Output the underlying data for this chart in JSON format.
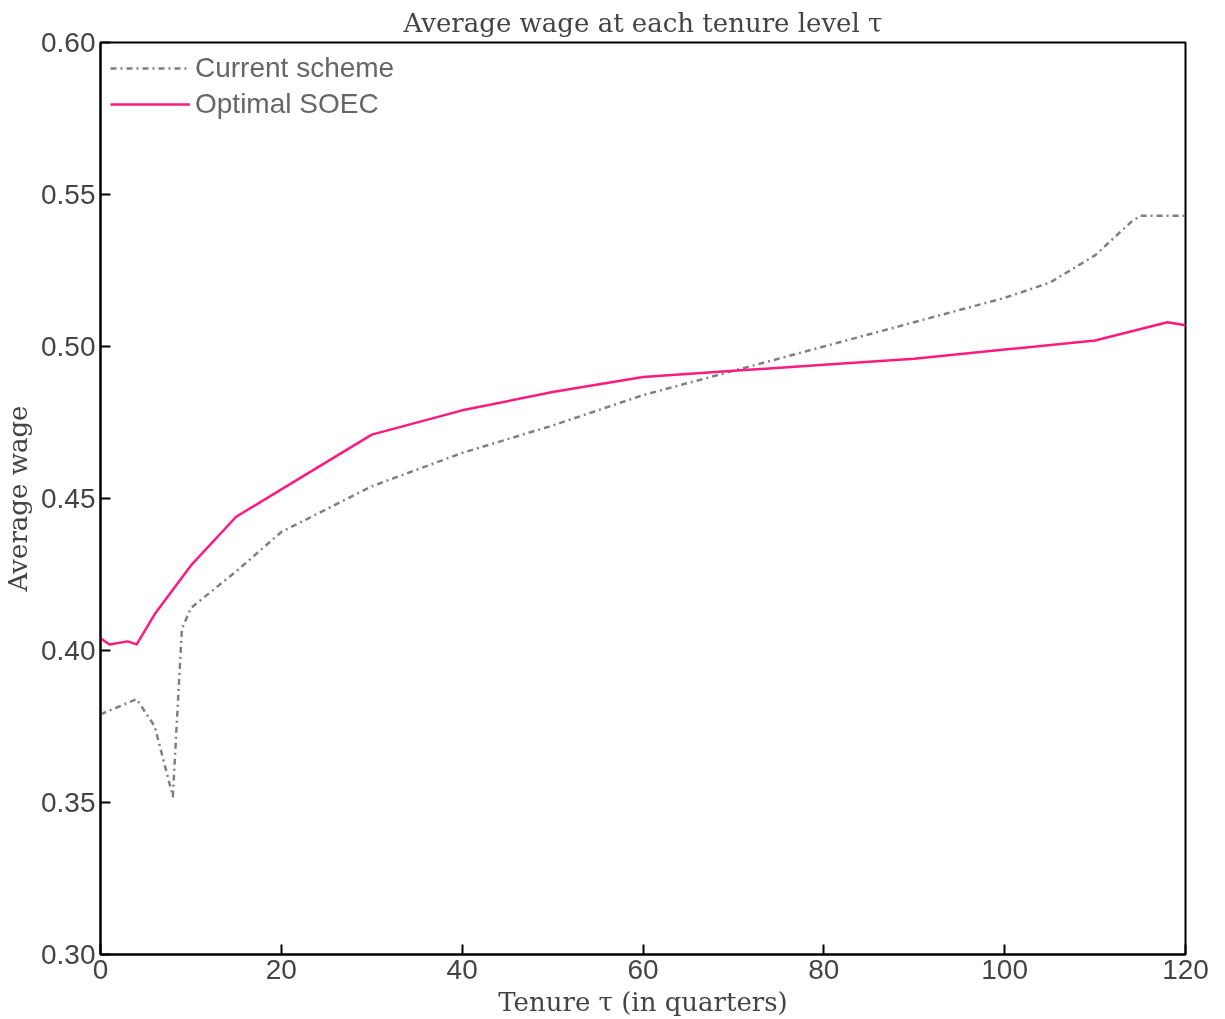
{
  "chart_data": {
    "type": "line",
    "title": "Average wage at each tenure level τ",
    "xlabel": "Tenure τ (in quarters)",
    "ylabel": "Average wage",
    "xlim": [
      0,
      120
    ],
    "xticks": [
      0,
      20,
      40,
      60,
      80,
      100,
      120
    ],
    "ylim": [
      0.3,
      0.6
    ],
    "yticks": [
      {
        "value": 0.3,
        "label": "0.30"
      },
      {
        "value": 0.35,
        "label": "0.35"
      },
      {
        "value": 0.4,
        "label": "0.40"
      },
      {
        "value": 0.45,
        "label": "0.45"
      },
      {
        "value": 0.5,
        "label": "0.50"
      },
      {
        "value": 0.55,
        "label": "0.55"
      },
      {
        "value": 0.6,
        "label": "0.60"
      }
    ],
    "grid": false,
    "legend": "top left",
    "marker": "none",
    "series": [
      {
        "name": "Current scheme",
        "color": "#808080",
        "line_style": "dashdot",
        "x": [
          0,
          4,
          6,
          8,
          9,
          10,
          15,
          20,
          30,
          40,
          50,
          60,
          70,
          80,
          90,
          100,
          105,
          110,
          114,
          115,
          120
        ],
        "values": [
          0.379,
          0.384,
          0.375,
          0.352,
          0.407,
          0.414,
          0.426,
          0.439,
          0.454,
          0.465,
          0.474,
          0.484,
          0.492,
          0.5,
          0.508,
          0.516,
          0.521,
          0.53,
          0.541,
          0.543,
          0.543
        ]
      },
      {
        "name": "Optimal SOEC",
        "color": "#ff1a80",
        "line_style": "solid",
        "x": [
          0,
          1,
          3,
          4,
          6,
          8,
          10,
          15,
          20,
          30,
          40,
          50,
          60,
          70,
          80,
          90,
          100,
          110,
          118,
          120
        ],
        "values": [
          0.404,
          0.402,
          0.403,
          0.402,
          0.412,
          0.42,
          0.428,
          0.444,
          0.453,
          0.471,
          0.479,
          0.485,
          0.49,
          0.492,
          0.494,
          0.496,
          0.499,
          0.502,
          0.508,
          0.507
        ]
      }
    ]
  }
}
